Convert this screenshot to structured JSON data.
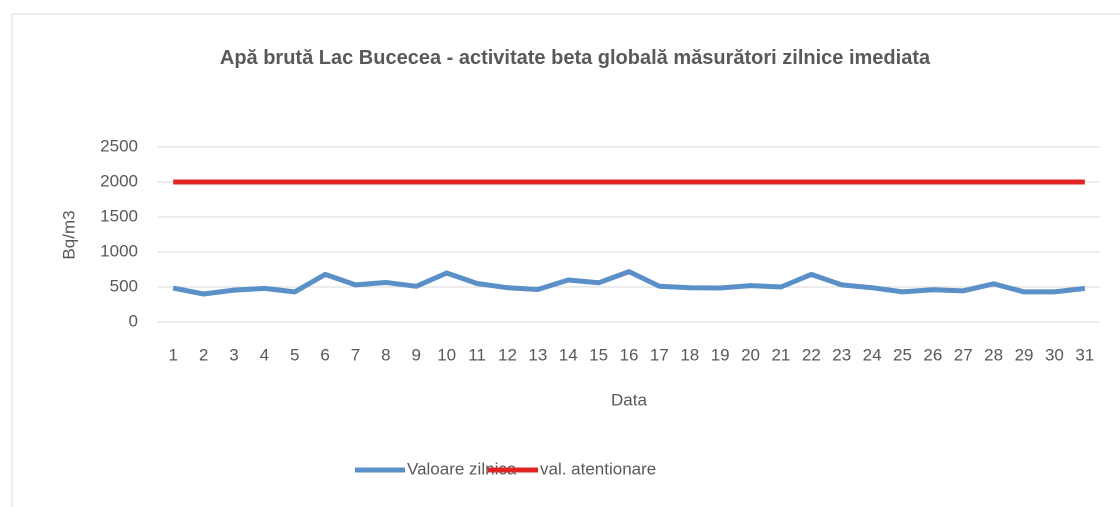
{
  "chart_data": {
    "type": "line",
    "title": "Apă brută Lac Bucecea - activitate beta globală măsurători zilnice imediata",
    "x_label": "Data",
    "y_label": "Bq/m3",
    "categories": [
      "1",
      "2",
      "3",
      "4",
      "5",
      "6",
      "7",
      "8",
      "9",
      "10",
      "11",
      "12",
      "13",
      "14",
      "15",
      "16",
      "17",
      "18",
      "19",
      "20",
      "21",
      "22",
      "23",
      "24",
      "25",
      "26",
      "27",
      "28",
      "29",
      "30",
      "31"
    ],
    "series": [
      {
        "name": "Valoare zilnica",
        "color": "#5b8fc7",
        "values": [
          485,
          400,
          455,
          480,
          430,
          680,
          530,
          565,
          510,
          700,
          550,
          490,
          465,
          600,
          560,
          720,
          510,
          490,
          485,
          520,
          500,
          680,
          530,
          490,
          430,
          460,
          445,
          545,
          430,
          430,
          480
        ]
      },
      {
        "name": "val. atentionare",
        "color": "#e02424",
        "values": [
          2000,
          2000,
          2000,
          2000,
          2000,
          2000,
          2000,
          2000,
          2000,
          2000,
          2000,
          2000,
          2000,
          2000,
          2000,
          2000,
          2000,
          2000,
          2000,
          2000,
          2000,
          2000,
          2000,
          2000,
          2000,
          2000,
          2000,
          2000,
          2000,
          2000,
          2000
        ]
      }
    ],
    "ylim": [
      0,
      2500
    ],
    "yticks": [
      0,
      500,
      1000,
      1500,
      2000,
      2500
    ],
    "grid": true,
    "legend": "bottom"
  }
}
